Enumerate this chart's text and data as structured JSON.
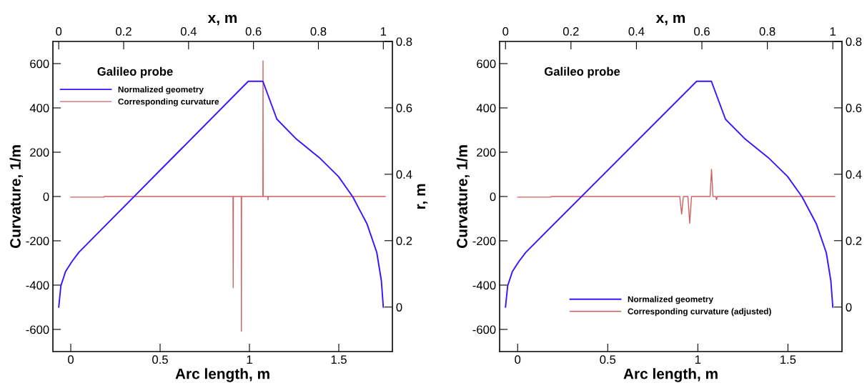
{
  "chart_data": [
    {
      "type": "line",
      "xlabel": "Arc length, m",
      "ylabel": "Curvature, 1/m",
      "xlim": [
        -0.1,
        1.8
      ],
      "xticks": [
        0,
        0.5,
        1,
        1.5
      ],
      "ylim": [
        -700,
        700
      ],
      "yticks": [
        -600,
        -400,
        -200,
        0,
        200,
        400,
        600
      ],
      "annotations": [
        "Galileo probe"
      ],
      "legend": "top left",
      "grid": false,
      "series": [
        {
          "name": "Corresponding curvature",
          "color": "#d06060",
          "x": [
            0,
            0.186,
            0.187,
            0.908,
            0.909,
            0.91,
            0.954,
            0.955,
            0.956,
            1.075,
            1.076,
            1.077,
            1.103,
            1.104,
            1.105,
            1.76
          ],
          "values": [
            -3,
            -3,
            0,
            0,
            -412,
            0,
            0,
            -608,
            0,
            0,
            612,
            0,
            0,
            -15,
            0,
            0
          ]
        }
      ]
    },
    {
      "type": "line",
      "xlabel": "x, m",
      "ylabel": "r, m",
      "xlim": [
        -0.018,
        1.028
      ],
      "xticks": [
        0,
        0.2,
        0.4,
        0.6,
        0.8,
        1
      ],
      "ylim": [
        -0.134,
        0.8
      ],
      "yticks": [
        0,
        0.2,
        0.4,
        0.6,
        0.8
      ],
      "grid": false,
      "series": [
        {
          "name": "Normalized geometry",
          "color": "#3c14ff",
          "x": [
            0,
            0.0066,
            0.021,
            0.04,
            0.062,
            0.584,
            0.629,
            0.672,
            0.73,
            0.803,
            0.862,
            0.906,
            0.95,
            0.98,
            0.994,
            1.0
          ],
          "values": [
            0,
            0.064,
            0.107,
            0.136,
            0.165,
            0.68,
            0.68,
            0.566,
            0.508,
            0.45,
            0.393,
            0.332,
            0.25,
            0.164,
            0.079,
            0
          ]
        }
      ]
    },
    {
      "type": "line",
      "xlabel": "Arc length, m",
      "ylabel": "Curvature, 1/m",
      "xlim": [
        -0.1,
        1.8
      ],
      "xticks": [
        0,
        0.5,
        1,
        1.5
      ],
      "ylim": [
        -700,
        700
      ],
      "yticks": [
        -600,
        -400,
        -200,
        0,
        200,
        400,
        600
      ],
      "annotations": [
        "Galileo probe"
      ],
      "legend": "bottom",
      "grid": false,
      "series": [
        {
          "name": "Corresponding curvature (adjusted)",
          "color": "#d06060",
          "x": [
            0,
            0.186,
            0.187,
            0.9,
            0.905,
            0.91,
            0.915,
            0.92,
            0.945,
            0.95,
            0.955,
            0.96,
            0.965,
            1.068,
            1.072,
            1.076,
            1.08,
            1.084,
            1.1,
            1.104,
            1.108,
            1.76
          ],
          "values": [
            -3,
            -3,
            0,
            0,
            -40,
            -80,
            -40,
            0,
            0,
            -60,
            -121,
            -60,
            0,
            0,
            60,
            123,
            60,
            0,
            0,
            -15,
            0,
            0
          ]
        }
      ]
    },
    {
      "type": "line",
      "xlabel": "x, m",
      "xlim": [
        -0.018,
        1.028
      ],
      "xticks": [
        0,
        0.2,
        0.4,
        0.6,
        0.8,
        1
      ],
      "ylim": [
        -0.134,
        0.8
      ],
      "yticks": [
        0,
        0.2,
        0.4,
        0.6,
        0.8
      ],
      "grid": false,
      "series": [
        {
          "name": "Normalized geometry",
          "color": "#3c14ff",
          "x": [
            0,
            0.0066,
            0.021,
            0.04,
            0.062,
            0.584,
            0.629,
            0.672,
            0.73,
            0.803,
            0.862,
            0.906,
            0.95,
            0.98,
            0.994,
            1.0
          ],
          "values": [
            0,
            0.064,
            0.107,
            0.136,
            0.165,
            0.68,
            0.68,
            0.566,
            0.508,
            0.45,
            0.393,
            0.332,
            0.25,
            0.164,
            0.079,
            0
          ]
        }
      ]
    }
  ]
}
